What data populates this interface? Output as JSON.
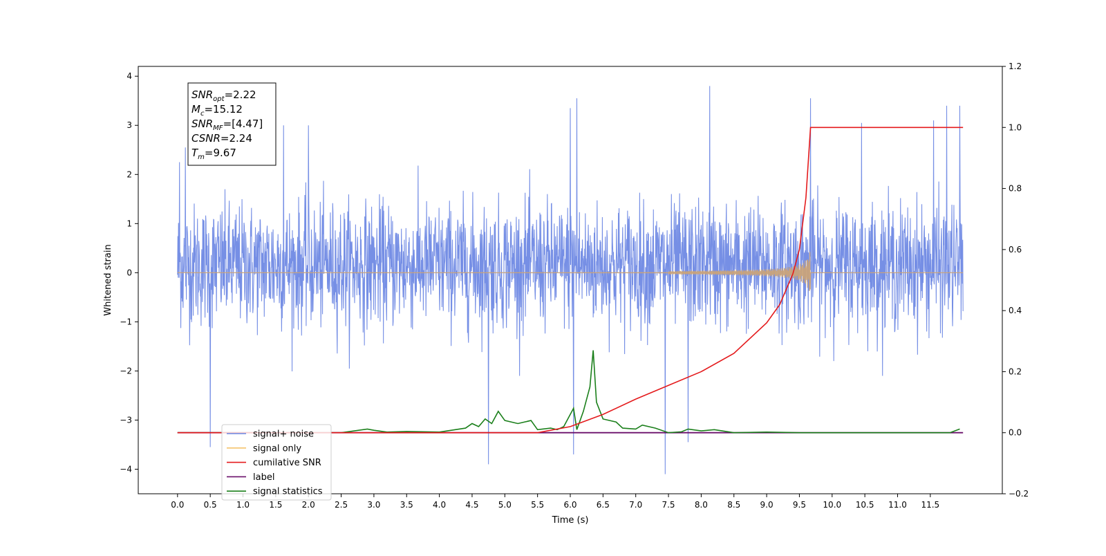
{
  "chart_data": {
    "type": "line",
    "xlabel": "Time (s)",
    "ylabel": "Whitened strain",
    "xlim": [
      -0.6,
      12.6
    ],
    "ylim": [
      -4.5,
      4.2
    ],
    "y2lim": [
      -0.2,
      1.2
    ],
    "x_ticks": [
      "0.0",
      "0.5",
      "1.0",
      "1.5",
      "2.0",
      "2.5",
      "3.0",
      "3.5",
      "4.0",
      "4.5",
      "5.0",
      "5.5",
      "6.0",
      "6.5",
      "7.0",
      "7.5",
      "8.0",
      "8.5",
      "9.0",
      "9.5",
      "10.0",
      "10.5",
      "11.0",
      "11.5"
    ],
    "y_ticks": [
      "4",
      "3",
      "2",
      "1",
      "0",
      "−1",
      "−2",
      "−3",
      "−4"
    ],
    "y2_ticks": [
      "1.2",
      "1.0",
      "0.8",
      "0.6",
      "0.4",
      "0.2",
      "0.0",
      "−0.2"
    ],
    "annotation": {
      "lines": [
        {
          "base": "SNR",
          "sub": "opt",
          "rest": "=2.22"
        },
        {
          "base": "M",
          "sub": "c",
          "rest": "=15.12"
        },
        {
          "base": "SNR",
          "sub": "MF",
          "rest": "=[4.47]"
        },
        {
          "base": "CSNR",
          "sub": "",
          "rest": "=2.24"
        },
        {
          "base": "T",
          "sub": "m",
          "rest": "=9.67"
        }
      ]
    },
    "legend": {
      "placement": "lower-left",
      "entries": [
        {
          "label": "signal+ noise",
          "color": "#6a86e3"
        },
        {
          "label": "signal only",
          "color": "#f5c36b"
        },
        {
          "label": "cumilative SNR",
          "color": "#e41a1c"
        },
        {
          "label": "label",
          "color": "#6a0f6a"
        },
        {
          "label": "signal statistics",
          "color": "#1a7f1a"
        }
      ]
    },
    "series": [
      {
        "name": "signal+ noise",
        "axis": "left",
        "color": "#6a86e3",
        "description_x_range": [
          0.0,
          12.0
        ],
        "band_mean": 0.0,
        "band_typical": [
          -1.8,
          2.3
        ],
        "peaks": [
          {
            "x": 0.03,
            "y": 2.25
          },
          {
            "x": 0.12,
            "y": 2.55
          },
          {
            "x": 0.5,
            "y": -3.55
          },
          {
            "x": 1.62,
            "y": 3.0
          },
          {
            "x": 2.0,
            "y": 3.0
          },
          {
            "x": 4.75,
            "y": -3.9
          },
          {
            "x": 6.0,
            "y": 3.35
          },
          {
            "x": 6.1,
            "y": 3.55
          },
          {
            "x": 6.05,
            "y": -3.7
          },
          {
            "x": 7.45,
            "y": -4.1
          },
          {
            "x": 8.13,
            "y": 3.8
          },
          {
            "x": 7.8,
            "y": -3.45
          },
          {
            "x": 9.67,
            "y": 3.55
          },
          {
            "x": 10.45,
            "y": 3.05
          },
          {
            "x": 11.55,
            "y": 3.1
          },
          {
            "x": 11.75,
            "y": 3.4
          },
          {
            "x": 11.95,
            "y": 3.4
          }
        ]
      },
      {
        "name": "signal only",
        "axis": "left",
        "color": "#c9a37a",
        "description": "near-zero chirp growing until merger near x=9.67",
        "merger_x": 9.67,
        "max_amplitude": 0.45
      },
      {
        "name": "cumilative SNR",
        "axis": "right",
        "color": "#e41a1c",
        "x": [
          0.0,
          5.5,
          6.0,
          6.5,
          7.0,
          7.5,
          8.0,
          8.5,
          9.0,
          9.2,
          9.4,
          9.5,
          9.6,
          9.67,
          12.0
        ],
        "y": [
          0.0,
          0.0,
          0.02,
          0.06,
          0.11,
          0.155,
          0.2,
          0.26,
          0.36,
          0.42,
          0.52,
          0.6,
          0.77,
          1.0,
          1.0
        ]
      },
      {
        "name": "label",
        "axis": "right",
        "color": "#6a0f6a",
        "x": [
          0.0,
          12.0
        ],
        "y": [
          0.0,
          0.0
        ]
      },
      {
        "name": "signal statistics",
        "axis": "right",
        "color": "#1a7f1a",
        "x": [
          0.0,
          2.5,
          2.9,
          3.0,
          3.2,
          3.5,
          4.0,
          4.4,
          4.5,
          4.6,
          4.7,
          4.8,
          4.9,
          5.0,
          5.2,
          5.3,
          5.4,
          5.5,
          5.7,
          5.8,
          5.9,
          6.05,
          6.1,
          6.2,
          6.3,
          6.35,
          6.4,
          6.5,
          6.7,
          6.8,
          7.0,
          7.1,
          7.3,
          7.5,
          7.7,
          7.8,
          8.0,
          8.2,
          8.5,
          9.0,
          9.5,
          11.8,
          11.95
        ],
        "y": [
          0.0,
          0.0,
          0.012,
          0.008,
          0.002,
          0.004,
          0.002,
          0.015,
          0.03,
          0.02,
          0.045,
          0.03,
          0.07,
          0.04,
          0.03,
          0.035,
          0.04,
          0.01,
          0.015,
          0.01,
          0.02,
          0.08,
          0.01,
          0.07,
          0.15,
          0.27,
          0.1,
          0.045,
          0.035,
          0.015,
          0.012,
          0.025,
          0.015,
          0.0,
          0.003,
          0.012,
          0.006,
          0.01,
          0.0,
          0.002,
          0.0,
          0.0,
          0.012
        ]
      }
    ]
  }
}
